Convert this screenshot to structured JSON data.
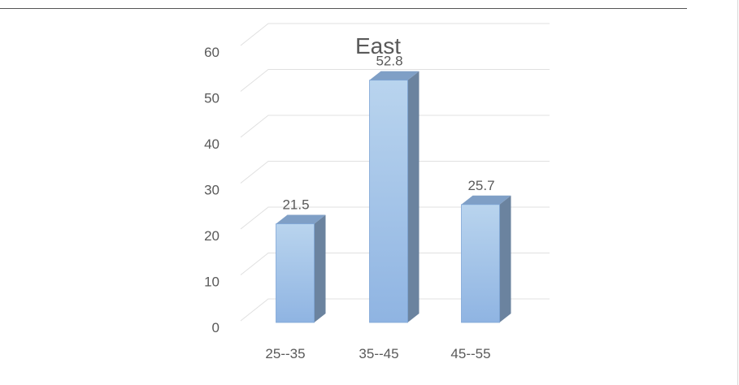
{
  "chart_data": {
    "type": "bar",
    "title": "East",
    "xlabel": "",
    "ylabel": "",
    "categories": [
      "25--35",
      "35--45",
      "45--55"
    ],
    "values": [
      21.5,
      52.8,
      25.7
    ],
    "value_labels": [
      "21.5",
      "52.8",
      "25.7"
    ],
    "ylim": [
      0,
      60
    ],
    "yticks": [
      0,
      10,
      20,
      30,
      40,
      50,
      60
    ],
    "grid": true,
    "legend": "none",
    "style": "3d-clustered-column",
    "colors": {
      "bar_front": "#9dc3e6",
      "bar_side": "#6b839f",
      "bar_top": "#7f9fc6",
      "grid": "#e0e0e0",
      "text": "#595959"
    }
  }
}
